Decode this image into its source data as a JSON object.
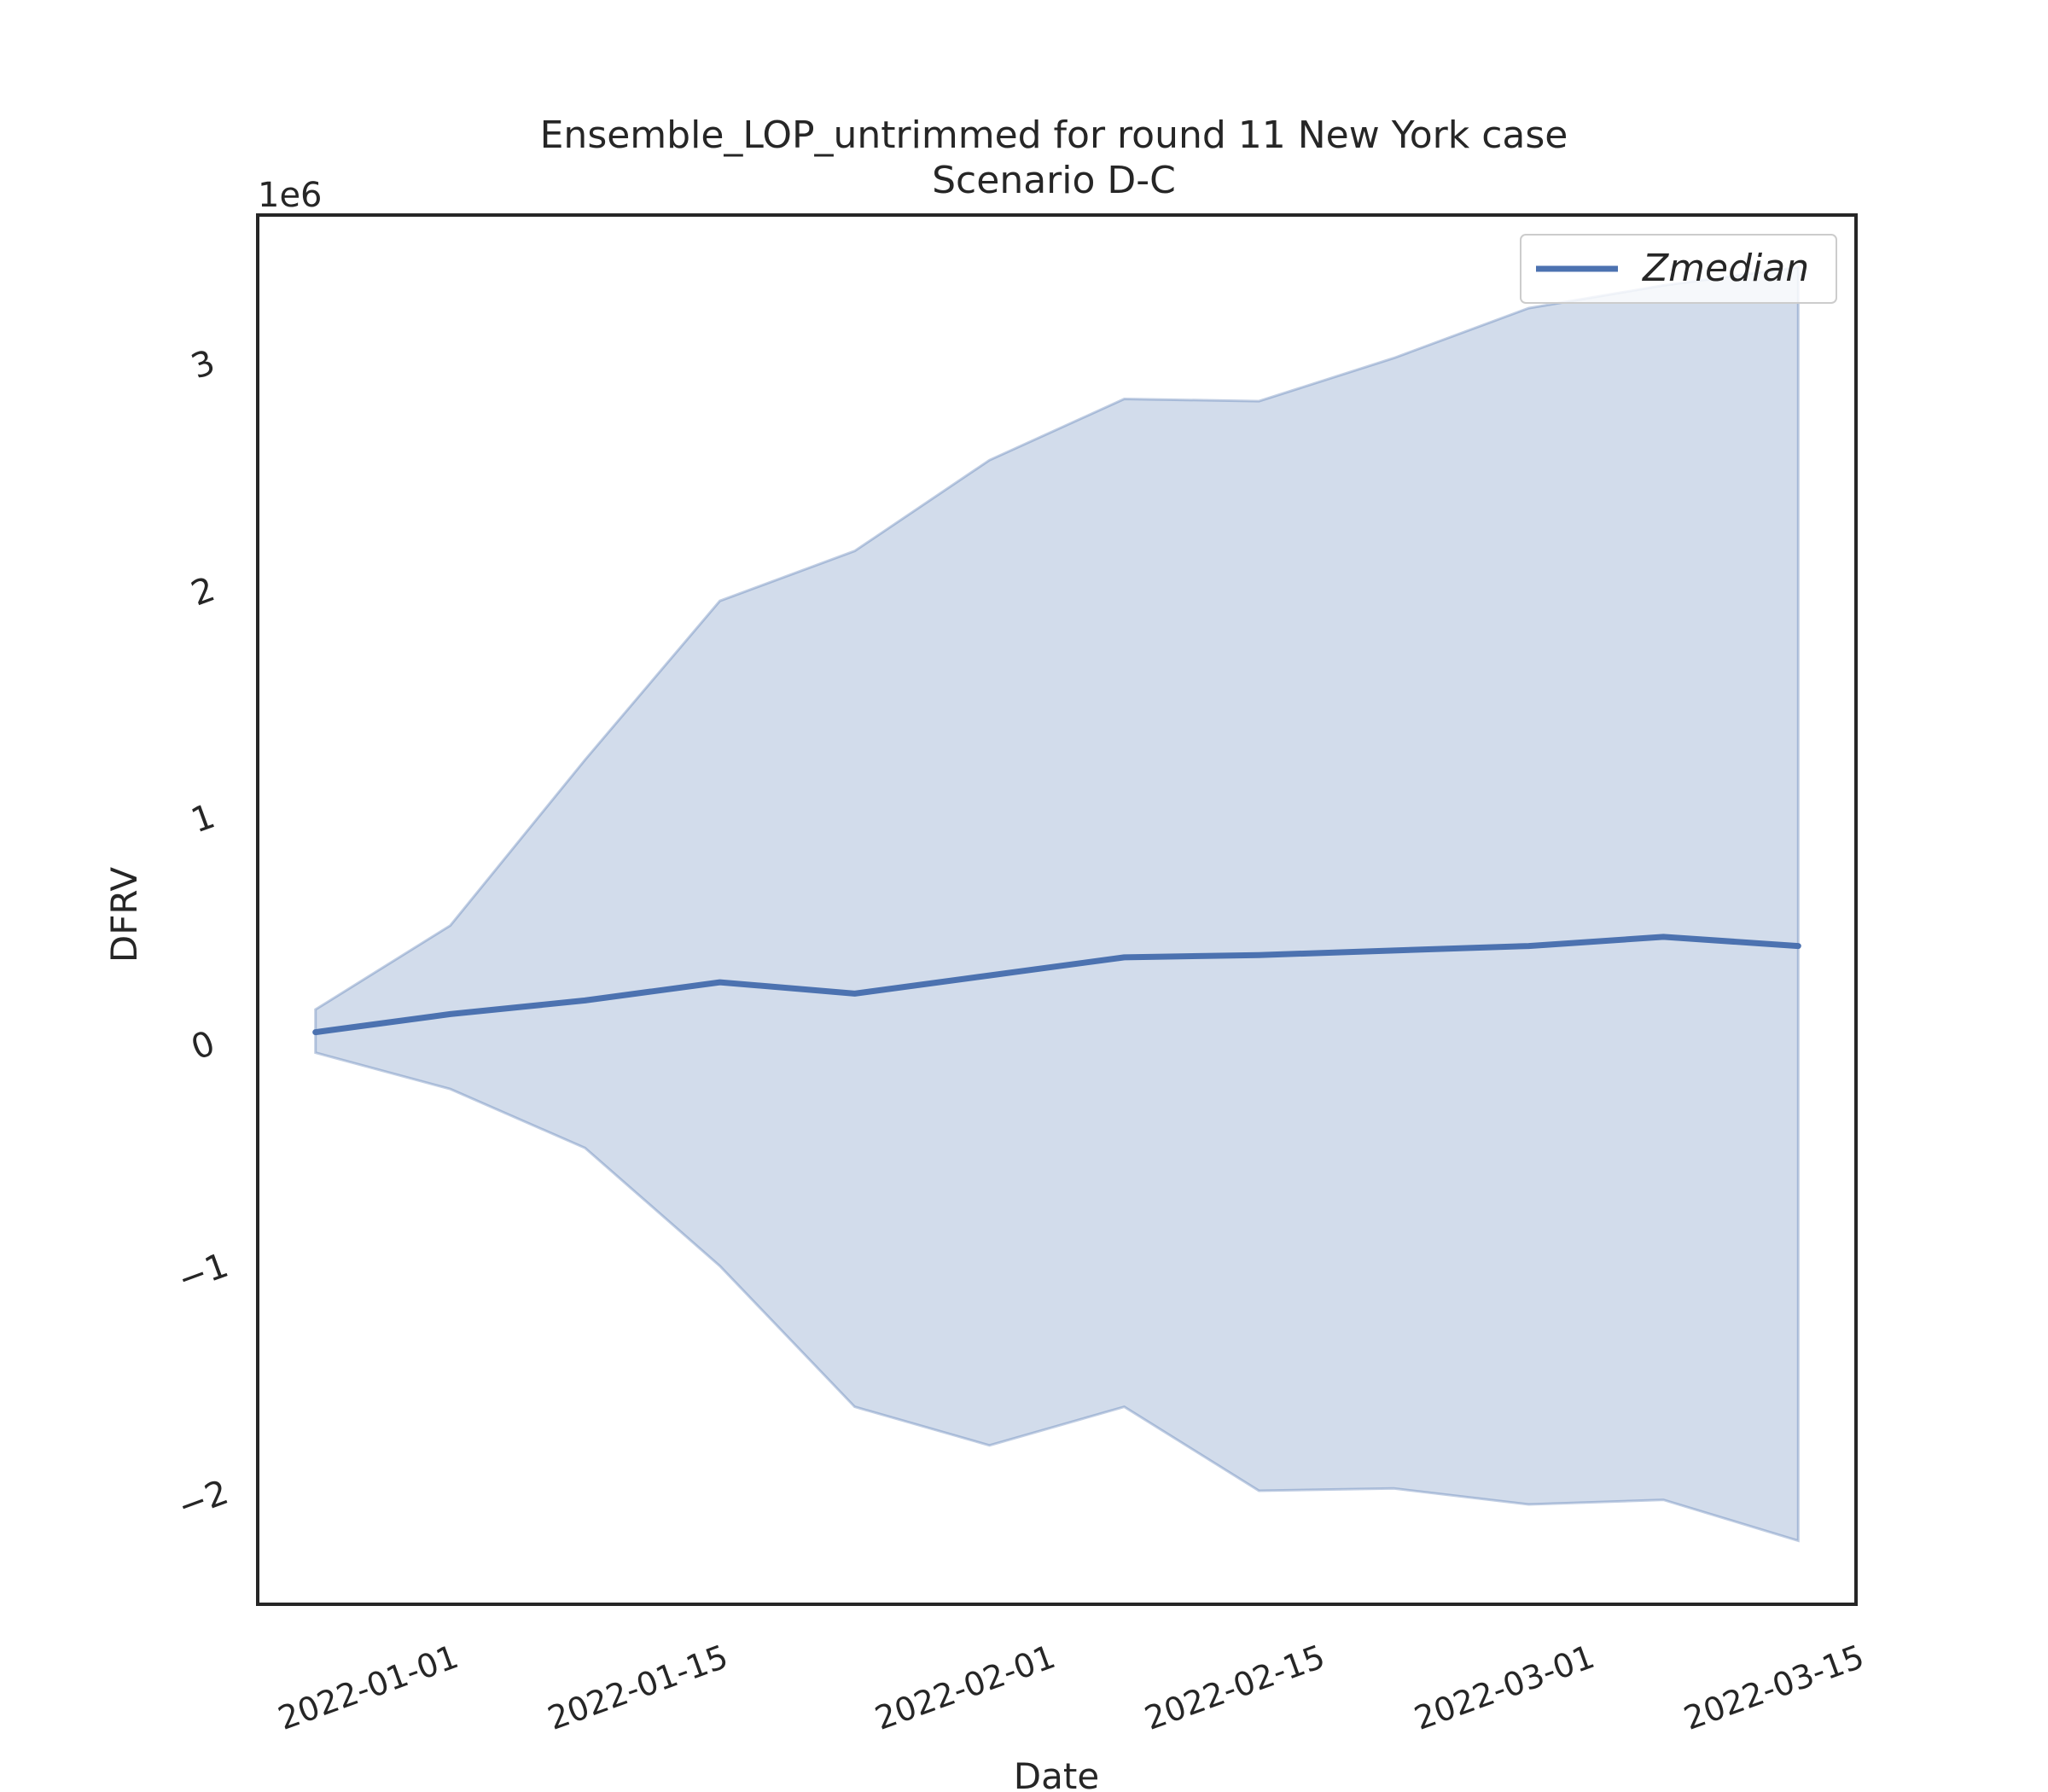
{
  "chart_data": {
    "type": "area",
    "title": "Ensemble_LOP_untrimmed for round 11 New York case",
    "subtitle": "Scenario D-C",
    "xlabel": "Date",
    "ylabel": "DFRV",
    "y_offset_label": "1e6",
    "x_ticks": [
      "2022-01-01",
      "2022-01-15",
      "2022-02-01",
      "2022-02-15",
      "2022-03-01",
      "2022-03-15"
    ],
    "y_ticks": [
      {
        "value": -2000000,
        "label": "−2"
      },
      {
        "value": -1000000,
        "label": "−1"
      },
      {
        "value": 0,
        "label": "0"
      },
      {
        "value": 1000000,
        "label": "1"
      },
      {
        "value": 2000000,
        "label": "2"
      },
      {
        "value": 3000000,
        "label": "3"
      }
    ],
    "xlim": [
      "2021-12-22",
      "2022-03-15"
    ],
    "ylim": [
      -2460000,
      3660000
    ],
    "grid": false,
    "legend_position": "upper right",
    "x": [
      "2021-12-25",
      "2022-01-01",
      "2022-01-08",
      "2022-01-15",
      "2022-01-22",
      "2022-01-29",
      "2022-02-05",
      "2022-02-12",
      "2022-02-19",
      "2022-02-26",
      "2022-03-05",
      "2022-03-12"
    ],
    "series": [
      {
        "name": "Zmedian",
        "color": "#4c72b0",
        "values": [
          60000,
          140000,
          200000,
          280000,
          230000,
          310000,
          390000,
          400000,
          420000,
          440000,
          480000,
          440000
        ]
      }
    ],
    "band": {
      "color": "#4c72b0",
      "lower": [
        -30000,
        -190000,
        -450000,
        -970000,
        -1590000,
        -1760000,
        -1590000,
        -1960000,
        -1950000,
        -2020000,
        -2000000,
        -2180000
      ],
      "upper": [
        160000,
        530000,
        1260000,
        1960000,
        2180000,
        2580000,
        2850000,
        2840000,
        3030000,
        3250000,
        3350000,
        3430000
      ]
    }
  }
}
